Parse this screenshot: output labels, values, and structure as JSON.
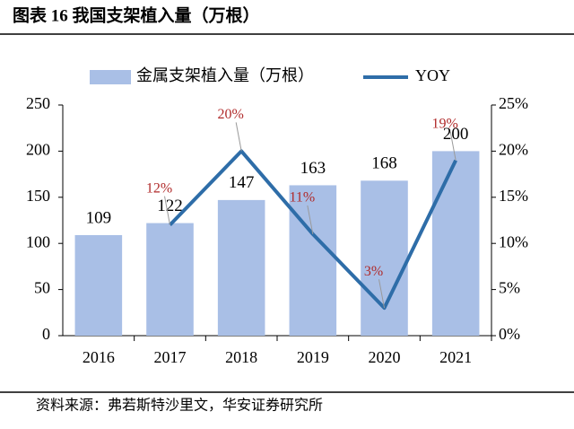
{
  "chart_data": {
    "type": "bar_line",
    "title": "图表 16 我国支架植入量（万根）",
    "source": "资料来源：弗若斯特沙里文，华安证券研究所",
    "categories": [
      "2016",
      "2017",
      "2018",
      "2019",
      "2020",
      "2021"
    ],
    "series": [
      {
        "name": "金属支架植入量（万根）",
        "type": "bar",
        "color": "#a9bfe6",
        "values": [
          109,
          122,
          147,
          163,
          168,
          200
        ]
      },
      {
        "name": "YOY",
        "type": "line",
        "axis": "y2",
        "color": "#2e6da8",
        "values": [
          null,
          12,
          20,
          11,
          3,
          19
        ],
        "value_labels": [
          null,
          "12%",
          "20%",
          "11%",
          "3%",
          "19%"
        ]
      }
    ],
    "ylim": [
      0,
      250
    ],
    "yticks": [
      0,
      50,
      100,
      150,
      200,
      250
    ],
    "y2lim": [
      0,
      25
    ],
    "y2ticks": [
      {
        "value": 0,
        "label": "0%"
      },
      {
        "value": 5,
        "label": "5%"
      },
      {
        "value": 10,
        "label": "10%"
      },
      {
        "value": 15,
        "label": "15%"
      },
      {
        "value": 20,
        "label": "20%"
      },
      {
        "value": 25,
        "label": "25%"
      }
    ],
    "legend": "top"
  }
}
